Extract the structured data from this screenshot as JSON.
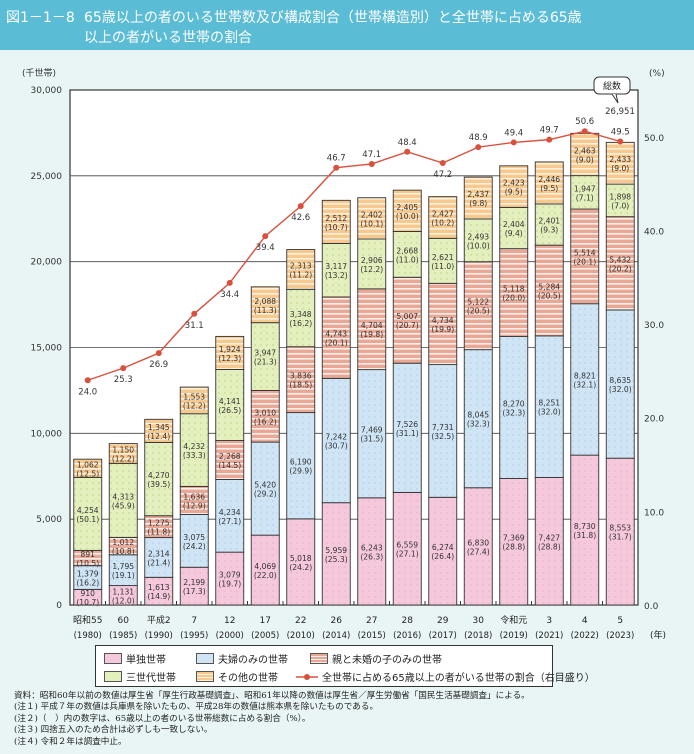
{
  "header": {
    "figure_number": "図1－1－8",
    "title_line1": "65歳以上の者のいる世帯数及び構成割合（世帯構造別）と全世帯に占める65歳",
    "title_line2": "以上の者がいる世帯の割合"
  },
  "chart_data": {
    "type": "bar",
    "stacked": true,
    "ylabel": "(千世帯)",
    "y2label": "(%)",
    "xunit": "(年)",
    "ylim": [
      0,
      30000
    ],
    "y2lim": [
      0,
      55
    ],
    "yticks": [
      "0",
      "5,000",
      "10,000",
      "15,000",
      "20,000",
      "25,000",
      "30,000"
    ],
    "y2ticks": [
      "0.0",
      "10.0",
      "20.0",
      "30.0",
      "40.0",
      "50.0"
    ],
    "grid": true,
    "legend_position": "bottom",
    "categories": [
      {
        "era": "昭和55",
        "year": "(1980)"
      },
      {
        "era": "60",
        "year": "(1985)"
      },
      {
        "era": "平成2",
        "year": "(1990)"
      },
      {
        "era": "7",
        "year": "(1995)"
      },
      {
        "era": "12",
        "year": "(2000)"
      },
      {
        "era": "17",
        "year": "(2005)"
      },
      {
        "era": "22",
        "year": "(2010)"
      },
      {
        "era": "26",
        "year": "(2014)"
      },
      {
        "era": "27",
        "year": "(2015)"
      },
      {
        "era": "28",
        "year": "(2016)"
      },
      {
        "era": "29",
        "year": "(2017)"
      },
      {
        "era": "30",
        "year": "(2018)"
      },
      {
        "era": "令和元",
        "year": "(2019)"
      },
      {
        "era": "3",
        "year": "(2021)"
      },
      {
        "era": "4",
        "year": "(2022)"
      },
      {
        "era": "5",
        "year": "(2023)"
      }
    ],
    "series": [
      {
        "name": "単独世帯",
        "color": "#f5c8dc",
        "pattern": "dots",
        "values": [
          910,
          1131,
          1613,
          2199,
          3079,
          4069,
          5018,
          5959,
          6243,
          6559,
          6274,
          6830,
          7369,
          7427,
          8730,
          8553
        ],
        "shares": [
          "10.7",
          "12.0",
          "14.9",
          "17.3",
          "19.7",
          "22.0",
          "24.2",
          "25.3",
          "26.3",
          "27.1",
          "26.4",
          "27.4",
          "28.8",
          "28.8",
          "31.8",
          "31.7"
        ]
      },
      {
        "name": "夫婦のみの世帯",
        "color": "#cfe4f4",
        "pattern": "dots",
        "values": [
          1379,
          1795,
          2314,
          3075,
          4234,
          5420,
          6190,
          7242,
          7469,
          7526,
          7731,
          8045,
          8270,
          8251,
          8821,
          8635
        ],
        "shares": [
          "16.2",
          "19.1",
          "21.4",
          "24.2",
          "27.1",
          "29.2",
          "29.9",
          "30.7",
          "31.5",
          "31.1",
          "32.5",
          "32.3",
          "32.3",
          "32.0",
          "32.1",
          "32.0"
        ]
      },
      {
        "name": "親と未婚の子のみの世帯",
        "color": "#e8a895",
        "pattern": "stripes",
        "values": [
          891,
          1012,
          1275,
          1636,
          2268,
          3010,
          3836,
          4743,
          4704,
          5007,
          4734,
          5122,
          5118,
          5284,
          5514,
          5432
        ],
        "shares": [
          "10.5",
          "10.8",
          "11.8",
          "12.9",
          "14.5",
          "16.2",
          "18.5",
          "20.1",
          "19.8",
          "20.7",
          "19.9",
          "20.5",
          "20.0",
          "20.5",
          "20.1",
          "20.2"
        ]
      },
      {
        "name": "三世代世帯",
        "color": "#e4efbe",
        "pattern": "dots",
        "values": [
          4254,
          4313,
          4270,
          4232,
          4141,
          3947,
          3348,
          3117,
          2906,
          2668,
          2621,
          2493,
          2404,
          2401,
          1947,
          1898
        ],
        "shares": [
          "50.1",
          "45.9",
          "39.5",
          "33.3",
          "26.5",
          "21.3",
          "16.2",
          "13.2",
          "12.2",
          "11.0",
          "11.0",
          "10.0",
          "9.4",
          "9.3",
          "7.1",
          "7.0"
        ]
      },
      {
        "name": "その他の世帯",
        "color": "#f7c98e",
        "pattern": "stripes",
        "values": [
          1062,
          1150,
          1345,
          1553,
          1924,
          2088,
          2313,
          2512,
          2402,
          2405,
          2427,
          2437,
          2423,
          2446,
          2463,
          2433
        ],
        "shares": [
          "12.5",
          "12.2",
          "12.4",
          "12.2",
          "12.3",
          "11.3",
          "11.2",
          "10.7",
          "10.1",
          "10.0",
          "10.2",
          "9.8",
          "9.5",
          "9.5",
          "9.0",
          "9.0"
        ]
      }
    ],
    "line": {
      "name": "全世帯に占める65歳以上の者がいる世帯の割合（右目盛り）",
      "color": "#d9503c",
      "axis": "right",
      "values": [
        24.0,
        25.3,
        26.9,
        31.1,
        34.4,
        39.4,
        42.6,
        46.7,
        47.1,
        48.4,
        47.2,
        48.9,
        49.4,
        49.7,
        50.6,
        49.5
      ]
    },
    "callout": {
      "label": "総数",
      "value": "26,951"
    }
  },
  "notes": [
    "資料：昭和60年以前の数値は厚生省「厚生行政基礎調査」、昭和61年以降の数値は厚生省／厚生労働省「国民生活基礎調査」による。",
    "(注１) 平成７年の数値は兵庫県を除いたもの、平成28年の数値は熊本県を除いたものである。",
    "(注２)（　）内の数字は、65歳以上の者のいる世帯総数に占める割合（%）。",
    "(注３) 四捨五入のため合計は必ずしも一致しない。",
    "(注４) 令和２年は調査中止。"
  ]
}
